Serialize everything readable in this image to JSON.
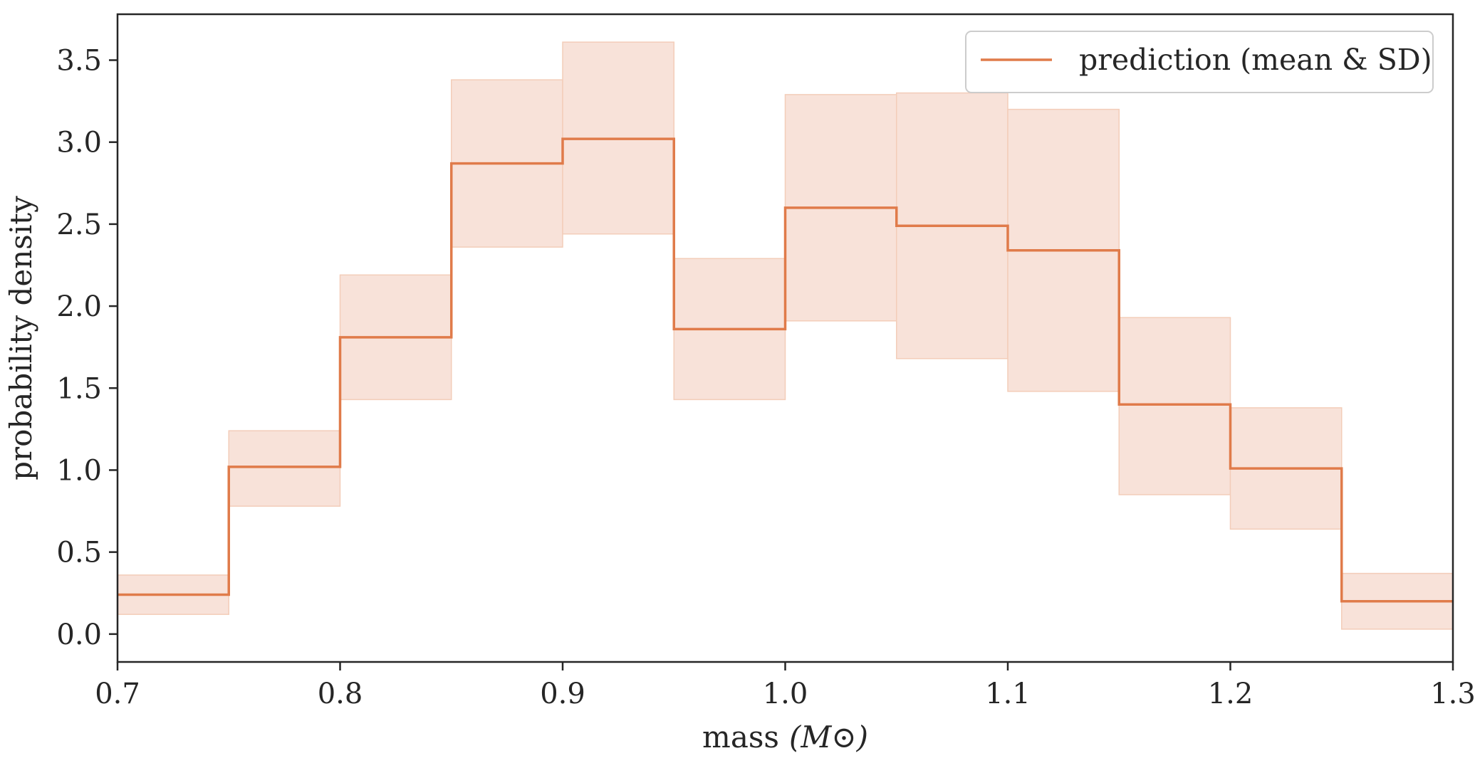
{
  "chart_data": {
    "type": "line",
    "subtype": "step-histogram-with-band",
    "title": "",
    "xlabel": "mass",
    "xlabel_unit": "(M⊙)",
    "ylabel": "probability density",
    "xlim": [
      0.7,
      1.3
    ],
    "ylim": [
      -0.17,
      3.78
    ],
    "xticks": [
      0.7,
      0.8,
      0.9,
      1.0,
      1.1,
      1.2,
      1.3
    ],
    "xtick_labels": [
      "0.7",
      "0.8",
      "0.9",
      "1.0",
      "1.1",
      "1.2",
      "1.3"
    ],
    "yticks": [
      0.0,
      0.5,
      1.0,
      1.5,
      2.0,
      2.5,
      3.0,
      3.5
    ],
    "ytick_labels": [
      "0.0",
      "0.5",
      "1.0",
      "1.5",
      "2.0",
      "2.5",
      "3.0",
      "3.5"
    ],
    "grid": false,
    "legend_position": "top-right",
    "bin_edges": [
      0.7,
      0.75,
      0.8,
      0.85,
      0.9,
      0.95,
      1.0,
      1.05,
      1.1,
      1.15,
      1.2,
      1.25,
      1.3
    ],
    "series": [
      {
        "name": "prediction (mean & SD)",
        "color": "#e07b4a",
        "band_color": "#f8e2d9",
        "band_edge_color": "#f3cdb9",
        "mean": [
          0.24,
          1.02,
          1.81,
          2.87,
          3.02,
          1.86,
          2.6,
          2.49,
          2.34,
          1.4,
          1.01,
          0.2
        ],
        "lower": [
          0.12,
          0.78,
          1.43,
          2.36,
          2.44,
          1.43,
          1.91,
          1.68,
          1.48,
          0.85,
          0.64,
          0.03
        ],
        "upper": [
          0.36,
          1.24,
          2.19,
          3.38,
          3.61,
          2.29,
          3.29,
          3.3,
          3.2,
          1.93,
          1.38,
          0.37
        ]
      }
    ]
  }
}
